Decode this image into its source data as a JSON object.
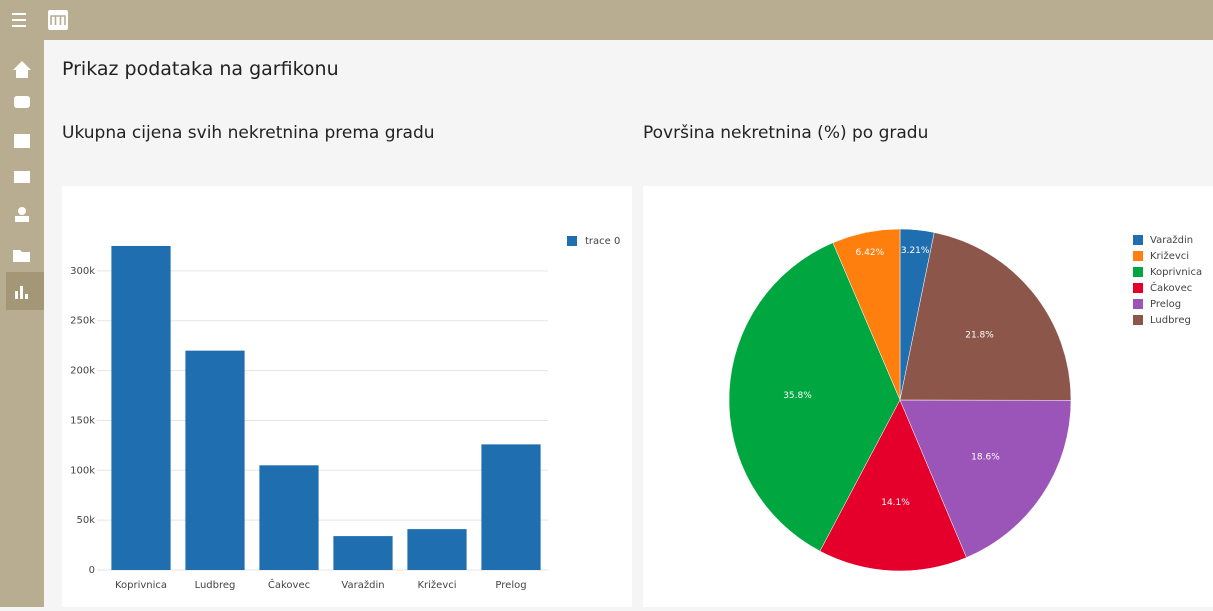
{
  "page": {
    "title": "Prikaz podataka na garfikonu"
  },
  "chart_data": [
    {
      "type": "bar",
      "title": "Ukupna cijena svih nekretnina prema gradu",
      "categories": [
        "Koprivnica",
        "Ludbreg",
        "Čakovec",
        "Varaždin",
        "Križevci",
        "Prelog"
      ],
      "series": [
        {
          "name": "trace 0",
          "color": "#1f6fb0",
          "values": [
            325000,
            220000,
            105000,
            34000,
            41000,
            126000
          ]
        }
      ],
      "ylim": [
        0,
        342000
      ],
      "yticks": [
        0,
        {
          "value": 50000,
          "label": "50k"
        },
        {
          "value": 100000,
          "label": "100k"
        },
        {
          "value": 150000,
          "label": "150k"
        },
        {
          "value": 200000,
          "label": "200k"
        },
        {
          "value": 250000,
          "label": "250k"
        },
        {
          "value": 300000,
          "label": "300k"
        }
      ],
      "grid": true,
      "legend": "top-right"
    },
    {
      "type": "pie",
      "title": "Površina nekretnina (%) po gradu",
      "categories": [
        "Varaždin",
        "Križevci",
        "Koprivnica",
        "Čakovec",
        "Prelog",
        "Ludbreg"
      ],
      "values": [
        3.21,
        6.42,
        35.8,
        14.1,
        18.6,
        21.8
      ],
      "value_labels": [
        "3.21%",
        "6.42%",
        "35.8%",
        "14.1%",
        "18.6%",
        "21.8%"
      ],
      "colors": [
        "#1f6fb0",
        "#ff7f0e",
        "#00a63f",
        "#e4002b",
        "#9b55b8",
        "#8c564b"
      ],
      "legend": "top-right"
    }
  ]
}
